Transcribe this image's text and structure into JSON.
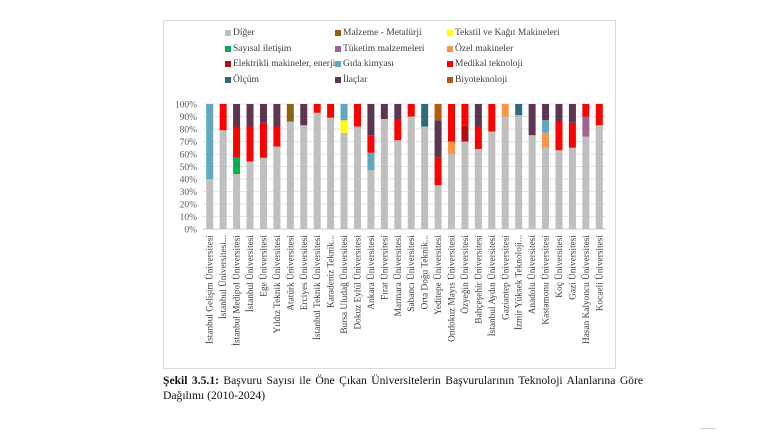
{
  "chart_data": {
    "type": "bar",
    "stacked": "percent",
    "title": "",
    "xlabel": "",
    "ylabel": "",
    "ylim": [
      0,
      100
    ],
    "yticks": [
      "0%",
      "10%",
      "20%",
      "30%",
      "40%",
      "50%",
      "60%",
      "70%",
      "80%",
      "90%",
      "100%"
    ],
    "grid": true,
    "legend_position": "top",
    "legend": [
      {
        "name": "Diğer",
        "color": "#bfbfbf"
      },
      {
        "name": "Malzeme - Metalürji",
        "color": "#8c6414"
      },
      {
        "name": "Tekstil ve Kağıt Makineleri",
        "color": "#ffff00"
      },
      {
        "name": "Sayısal iletişim",
        "color": "#00b050"
      },
      {
        "name": "Tüketim malzemeleri",
        "color": "#a3628f"
      },
      {
        "name": "Özel makineler",
        "color": "#f79646"
      },
      {
        "name": "Elektrikli makineler, enerji",
        "color": "#b01010"
      },
      {
        "name": "Gıda kimyası",
        "color": "#5fa8c0"
      },
      {
        "name": "Medikal teknoloji",
        "color": "#ff0000"
      },
      {
        "name": "Ölçüm",
        "color": "#2e6b7a"
      },
      {
        "name": "İlaçlar",
        "color": "#5c3550"
      },
      {
        "name": "Biyoteknoloji",
        "color": "#b35a10"
      }
    ],
    "categories": [
      "İstanbul Gelişim Üniversitesi",
      "İstanbul Üniversitesi...",
      "İstanbul Medipol Üniversitesi",
      "İstanbul Üniversitesi",
      "Ege Üniversitesi",
      "Yıldız Teknik Üniversitesi",
      "Atatürk Üniversitesi",
      "Erciyes Üniversitesi",
      "İstanbul Teknik Üniversitesi",
      "Karadeniz Teknik...",
      "Bursa Uludağ Üniversitesi",
      "Dokuz Eylül Üniversitesi",
      "Ankara Üniversitesi",
      "Fırat Üniversitesi",
      "Marmara Üniversitesi",
      "Sabancı Üniversitesi",
      "Orta Doğu Teknik...",
      "Yeditepe Üniversitesi",
      "Ondokuz Mayıs Üniversitesi",
      "Özyeğin Üniversitesi",
      "Bahçeşehir Üniversitesi",
      "İstanbul Aydın Üniversitesi",
      "Gaziantep Üniversitesi",
      "İzmir Yüksek Teknoloji...",
      "Anadolu Üniversitesi",
      "Kastamonu Üniversitesi",
      "Koç Üniversitesi",
      "Gazi Üniversitesi",
      "Hasan Kalyoncu Üniversitesi",
      "Kocaeli Üniversitesi"
    ],
    "series": [
      {
        "name": "Diğer",
        "values": [
          40,
          79,
          44,
          54,
          57,
          66,
          86,
          83,
          93,
          89,
          77,
          82,
          47,
          88,
          71,
          90,
          82,
          35,
          60,
          70,
          64,
          78,
          90,
          91,
          75,
          65,
          63,
          65,
          74,
          83
        ]
      },
      {
        "name": "Malzeme - Metalürji",
        "values": [
          0,
          0,
          0,
          0,
          0,
          0,
          14,
          0,
          0,
          0,
          0,
          0,
          0,
          0,
          0,
          0,
          0,
          0,
          0,
          0,
          0,
          0,
          0,
          0,
          0,
          0,
          0,
          0,
          0,
          0
        ]
      },
      {
        "name": "Tekstil ve Kağıt Makineleri",
        "values": [
          0,
          0,
          0,
          0,
          0,
          0,
          0,
          0,
          0,
          0,
          10,
          0,
          0,
          0,
          0,
          0,
          0,
          0,
          0,
          0,
          0,
          0,
          0,
          0,
          0,
          0,
          0,
          0,
          0,
          0
        ]
      },
      {
        "name": "Sayısal iletişim",
        "values": [
          0,
          0,
          13,
          0,
          0,
          0,
          0,
          0,
          0,
          0,
          0,
          0,
          0,
          0,
          0,
          0,
          0,
          0,
          0,
          0,
          0,
          0,
          0,
          0,
          0,
          0,
          0,
          0,
          0,
          0
        ]
      },
      {
        "name": "Tüketim malzemeleri",
        "values": [
          0,
          0,
          0,
          0,
          0,
          0,
          0,
          0,
          0,
          0,
          0,
          0,
          0,
          0,
          0,
          0,
          0,
          0,
          0,
          0,
          0,
          0,
          0,
          0,
          0,
          0,
          0,
          0,
          16,
          0
        ]
      },
      {
        "name": "Özel makineler",
        "values": [
          0,
          0,
          0,
          0,
          0,
          0,
          0,
          0,
          0,
          0,
          0,
          0,
          0,
          0,
          0,
          0,
          0,
          0,
          10,
          0,
          0,
          0,
          10,
          0,
          0,
          12,
          0,
          0,
          0,
          0
        ]
      },
      {
        "name": "Elektrikli makineler, enerji",
        "values": [
          0,
          0,
          0,
          0,
          0,
          0,
          0,
          0,
          0,
          0,
          0,
          0,
          0,
          0,
          0,
          0,
          0,
          0,
          0,
          13,
          0,
          0,
          0,
          0,
          0,
          0,
          0,
          0,
          0,
          0
        ]
      },
      {
        "name": "Gıda kimyası",
        "values": [
          60,
          0,
          0,
          0,
          0,
          0,
          0,
          0,
          0,
          0,
          13,
          0,
          14,
          0,
          0,
          0,
          0,
          0,
          0,
          0,
          0,
          0,
          0,
          0,
          0,
          10,
          0,
          0,
          0,
          0
        ]
      },
      {
        "name": "Medikal teknoloji",
        "values": [
          0,
          21,
          25,
          28,
          28,
          16,
          0,
          0,
          7,
          11,
          0,
          18,
          14,
          0,
          17,
          10,
          0,
          22,
          30,
          17,
          18,
          22,
          0,
          0,
          0,
          0,
          23,
          20,
          10,
          17
        ]
      },
      {
        "name": "Ölçüm",
        "values": [
          0,
          0,
          0,
          0,
          0,
          0,
          0,
          0,
          0,
          0,
          0,
          0,
          0,
          0,
          0,
          0,
          18,
          0,
          0,
          0,
          0,
          0,
          0,
          9,
          0,
          0,
          0,
          0,
          0,
          0
        ]
      },
      {
        "name": "İlaçlar",
        "values": [
          0,
          0,
          18,
          18,
          15,
          18,
          0,
          17,
          0,
          0,
          0,
          0,
          25,
          12,
          12,
          0,
          0,
          30,
          0,
          0,
          18,
          0,
          0,
          0,
          25,
          13,
          14,
          15,
          0,
          0
        ]
      },
      {
        "name": "Biyoteknoloji",
        "values": [
          0,
          0,
          0,
          0,
          0,
          0,
          0,
          0,
          0,
          0,
          0,
          0,
          0,
          0,
          0,
          0,
          0,
          13,
          0,
          0,
          0,
          0,
          0,
          0,
          0,
          0,
          0,
          0,
          0,
          0
        ]
      }
    ]
  },
  "caption": {
    "label": "Şekil 3.5.1:",
    "text": " Başvuru Sayısı ile Öne Çıkan Üniversitelerin Başvurularının Teknoloji Alanlarına Göre Dağılımı (2010-2024)"
  }
}
